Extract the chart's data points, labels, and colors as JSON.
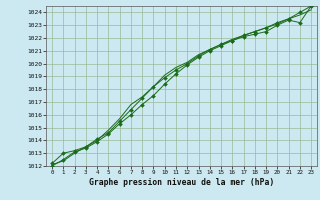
{
  "title": "Graphe pression niveau de la mer (hPa)",
  "background_color": "#cce8f0",
  "grid_color": "#99bb99",
  "line_color": "#1a6b1a",
  "marker_color": "#1a6b1a",
  "xlim": [
    -0.5,
    23.5
  ],
  "ylim": [
    1012,
    1024.5
  ],
  "yticks": [
    1012,
    1013,
    1014,
    1015,
    1016,
    1017,
    1018,
    1019,
    1020,
    1021,
    1022,
    1023,
    1024
  ],
  "xticks": [
    0,
    1,
    2,
    3,
    4,
    5,
    6,
    7,
    8,
    9,
    10,
    11,
    12,
    13,
    14,
    15,
    16,
    17,
    18,
    19,
    20,
    21,
    22,
    23
  ],
  "series1_x": [
    0,
    1,
    2,
    3,
    4,
    5,
    6,
    7,
    8,
    9,
    10,
    11,
    12,
    13,
    14,
    15,
    16,
    17,
    18,
    19,
    20,
    21,
    22,
    23
  ],
  "series1_y": [
    1012.2,
    1013.0,
    1013.2,
    1013.5,
    1014.1,
    1014.6,
    1015.5,
    1016.4,
    1017.3,
    1018.2,
    1018.9,
    1019.5,
    1020.0,
    1020.6,
    1021.1,
    1021.5,
    1021.8,
    1022.1,
    1022.3,
    1022.5,
    1023.0,
    1023.4,
    1023.2,
    1024.5
  ],
  "series2_x": [
    0,
    1,
    2,
    3,
    4,
    5,
    6,
    7,
    8,
    9,
    10,
    11,
    12,
    13,
    14,
    15,
    16,
    17,
    18,
    19,
    20,
    21,
    22,
    23
  ],
  "series2_y": [
    1012.0,
    1012.5,
    1013.1,
    1013.4,
    1013.9,
    1014.5,
    1015.3,
    1016.0,
    1016.8,
    1017.5,
    1018.4,
    1019.2,
    1019.9,
    1020.5,
    1021.0,
    1021.4,
    1021.8,
    1022.2,
    1022.5,
    1022.8,
    1023.2,
    1023.5,
    1024.0,
    1024.5
  ],
  "series3_x": [
    0,
    1,
    2,
    3,
    4,
    5,
    6,
    7,
    8,
    9,
    10,
    11,
    12,
    13,
    14,
    15,
    16,
    17,
    18,
    19,
    20,
    21,
    22,
    23
  ],
  "series3_y": [
    1012.1,
    1012.4,
    1013.0,
    1013.5,
    1014.0,
    1014.8,
    1015.7,
    1016.8,
    1017.4,
    1018.2,
    1019.1,
    1019.7,
    1020.1,
    1020.7,
    1021.1,
    1021.5,
    1021.9,
    1022.2,
    1022.5,
    1022.8,
    1023.1,
    1023.5,
    1023.8,
    1024.2
  ]
}
